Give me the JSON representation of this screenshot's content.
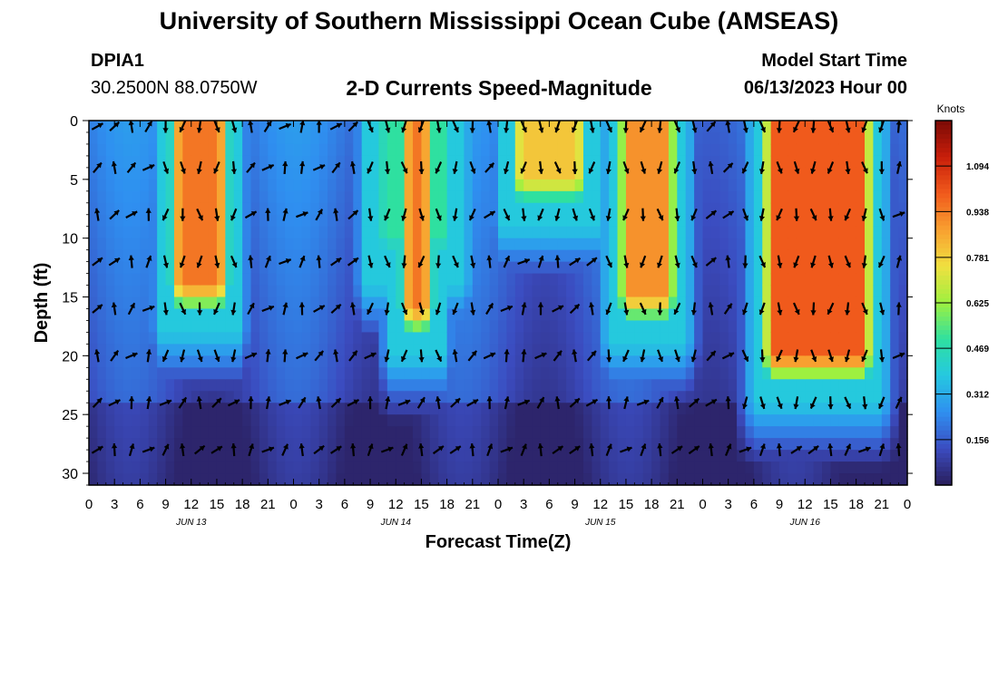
{
  "header": {
    "title": "University of Southern Mississippi Ocean Cube (AMSEAS)",
    "station_id": "DPIA1",
    "station_coords": "30.2500N  88.0750W",
    "plot_title": "2-D Currents Speed-Magnitude",
    "model_start_label": "Model Start Time",
    "model_start_value": "06/13/2023 Hour 00"
  },
  "footer": {
    "title": "University of Southern Mississippi Ocean Cube (AMSEAS)"
  },
  "colors": {
    "scale": [
      "#2a1e5c",
      "#3b4cc0",
      "#2f8ff0",
      "#25c8e0",
      "#2fe0a0",
      "#9ef040",
      "#f0e040",
      "#f8a030",
      "#f05a1c",
      "#c81e0a",
      "#7a0a06"
    ]
  },
  "chart_data": {
    "type": "heatmap",
    "title": "2-D Currents Speed-Magnitude",
    "xlabel": "Forecast Time(Z)",
    "ylabel": "Depth (ft)",
    "x_ticks": [
      "0",
      "3",
      "6",
      "9",
      "12",
      "15",
      "18",
      "21",
      "0",
      "3",
      "6",
      "9",
      "12",
      "15",
      "18",
      "21",
      "0",
      "3",
      "6",
      "9",
      "12",
      "15",
      "18",
      "21",
      "0",
      "3",
      "6",
      "9",
      "12",
      "15",
      "18",
      "21",
      "0"
    ],
    "x_range_hours": [
      0,
      96
    ],
    "day_labels": [
      {
        "label": "JUN 13",
        "hour": 12
      },
      {
        "label": "JUN 14",
        "hour": 36
      },
      {
        "label": "JUN 15",
        "hour": 60
      },
      {
        "label": "JUN 16",
        "hour": 84
      }
    ],
    "y_ticks": [
      0,
      5,
      10,
      15,
      20,
      25,
      30
    ],
    "ylim": [
      0,
      31
    ],
    "colorbar": {
      "label": "Knots",
      "ticks": [
        "1.094",
        "0.938",
        "0.781",
        "0.625",
        "0.469",
        "0.312",
        "0.156"
      ],
      "tick_values": [
        1.094,
        0.938,
        0.781,
        0.625,
        0.469,
        0.312,
        0.156
      ],
      "range": [
        0,
        1.25
      ]
    },
    "high_speed_events": [
      {
        "start_hour": 8.5,
        "end_hour": 17.5,
        "bottom_depth_ft": 18,
        "peak_knots": 0.95
      },
      {
        "start_hour": 32.5,
        "end_hour": 44,
        "bottom_depth_ft": 14,
        "peak_knots": 0.5
      },
      {
        "start_hour": 35.5,
        "end_hour": 41.5,
        "bottom_depth_ft": 20,
        "peak_knots": 0.95
      },
      {
        "start_hour": 48.5,
        "end_hour": 59.5,
        "bottom_depth_ft": 9,
        "peak_knots": 0.8
      },
      {
        "start_hour": 61,
        "end_hour": 70,
        "bottom_depth_ft": 19,
        "peak_knots": 0.9
      },
      {
        "start_hour": 78,
        "end_hour": 93,
        "bottom_depth_ft": 24,
        "peak_knots": 1.0
      }
    ],
    "arrow_depths_ft": [
      0,
      4,
      8,
      12,
      16,
      20,
      24,
      28
    ],
    "arrow_hours": [
      1,
      3,
      5,
      7,
      9,
      11,
      13,
      15,
      17,
      19,
      21,
      23,
      25,
      27,
      29,
      31,
      33,
      35,
      37,
      39,
      41,
      43,
      45,
      47,
      49,
      51,
      53,
      55,
      57,
      59,
      61,
      63,
      65,
      67,
      69,
      71,
      73,
      75,
      77,
      79,
      81,
      83,
      85,
      87,
      89,
      91,
      93,
      95
    ],
    "arrow_direction_rule": "flood (southward) during high-speed events, ebb (north/east) otherwise"
  }
}
